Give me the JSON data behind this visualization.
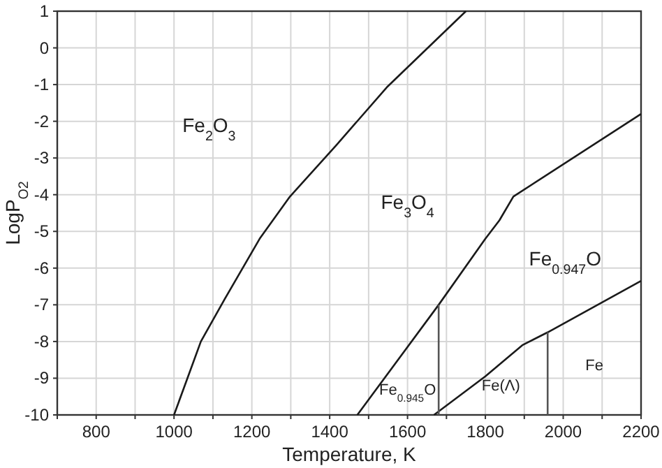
{
  "chart_data": {
    "type": "line",
    "xlabel": "Temperature, K",
    "ylabel": "LogP$_{O2}$",
    "xlim": [
      700,
      2200
    ],
    "ylim": [
      -10,
      1
    ],
    "xticks": [
      {
        "value": 700,
        "label": null
      },
      800,
      {
        "value": 900,
        "label": null
      },
      1000,
      {
        "value": 1100,
        "label": null
      },
      1200,
      {
        "value": 1300,
        "label": null
      },
      1400,
      {
        "value": 1500,
        "label": null
      },
      1600,
      {
        "value": 1700,
        "label": null
      },
      1800,
      {
        "value": 1900,
        "label": null
      },
      2000,
      {
        "value": 2100,
        "label": null
      },
      2200
    ],
    "yticks": [
      -10,
      -9,
      -8,
      -7,
      -6,
      -5,
      -4,
      -3,
      -2,
      -1,
      0,
      1
    ],
    "grid": true,
    "marker": "none",
    "line_style": "solid",
    "series": [
      {
        "color": "#1a1a1a",
        "x": [
          1000,
          1069,
          1130,
          1220,
          1298,
          1417,
          1549,
          1750
        ],
        "values": [
          -10,
          -8,
          -6.85,
          -5.2,
          -4.05,
          -2.65,
          -1.05,
          1
        ]
      },
      {
        "color": "#1a1a1a",
        "x": [
          1471,
          1680,
          1800,
          1836,
          1872,
          2200
        ],
        "values": [
          -10,
          -7,
          -5.2,
          -4.7,
          -4.05,
          -1.8
        ]
      },
      {
        "color": "#1a1a1a",
        "x": [
          1668,
          1800,
          1895,
          1960,
          2200
        ],
        "values": [
          -10,
          -8.95,
          -8.1,
          -7.75,
          -6.35
        ]
      },
      {
        "color": "#555555",
        "x": [
          1680,
          1680
        ],
        "values": [
          -10,
          -7
        ]
      },
      {
        "color": "#555555",
        "x": [
          1960,
          1960
        ],
        "values": [
          -10,
          -7.75
        ]
      }
    ],
    "annotations": [
      "Fe$_{2}$O$_{3}$",
      "Fe$_{3}$O$_{4}$",
      "Fe$_{0.947}$O",
      "Fe$_{0.945}$O",
      "Fe(Λ)",
      "Fe"
    ]
  }
}
